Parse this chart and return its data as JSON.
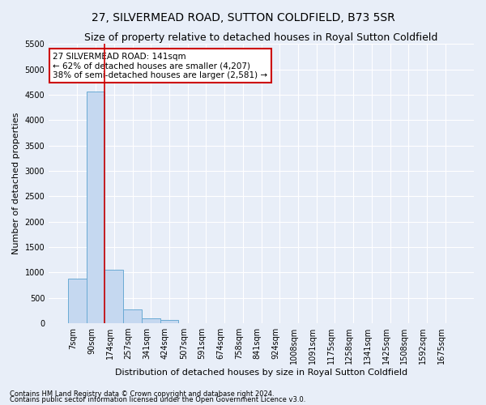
{
  "title": "27, SILVERMEAD ROAD, SUTTON COLDFIELD, B73 5SR",
  "subtitle": "Size of property relative to detached houses in Royal Sutton Coldfield",
  "xlabel": "Distribution of detached houses by size in Royal Sutton Coldfield",
  "ylabel": "Number of detached properties",
  "footnote1": "Contains HM Land Registry data © Crown copyright and database right 2024.",
  "footnote2": "Contains public sector information licensed under the Open Government Licence v3.0.",
  "bar_labels": [
    "7sqm",
    "90sqm",
    "174sqm",
    "257sqm",
    "341sqm",
    "424sqm",
    "507sqm",
    "591sqm",
    "674sqm",
    "758sqm",
    "841sqm",
    "924sqm",
    "1008sqm",
    "1091sqm",
    "1175sqm",
    "1258sqm",
    "1341sqm",
    "1425sqm",
    "1508sqm",
    "1592sqm",
    "1675sqm"
  ],
  "bar_values": [
    880,
    4560,
    1060,
    270,
    90,
    70,
    0,
    0,
    0,
    0,
    0,
    0,
    0,
    0,
    0,
    0,
    0,
    0,
    0,
    0,
    0
  ],
  "bar_color": "#c5d8f0",
  "bar_edge_color": "#6aaad4",
  "vline_x": 1.5,
  "vline_color": "#cc0000",
  "annotation_text": "27 SILVERMEAD ROAD: 141sqm\n← 62% of detached houses are smaller (4,207)\n38% of semi-detached houses are larger (2,581) →",
  "annotation_box_color": "white",
  "annotation_box_edge": "#cc0000",
  "ylim": [
    0,
    5500
  ],
  "yticks": [
    0,
    500,
    1000,
    1500,
    2000,
    2500,
    3000,
    3500,
    4000,
    4500,
    5000,
    5500
  ],
  "bg_color": "#e8eef8",
  "grid_color": "white",
  "title_fontsize": 10,
  "subtitle_fontsize": 9,
  "axis_label_fontsize": 8,
  "tick_fontsize": 7,
  "ylabel_fontsize": 8
}
